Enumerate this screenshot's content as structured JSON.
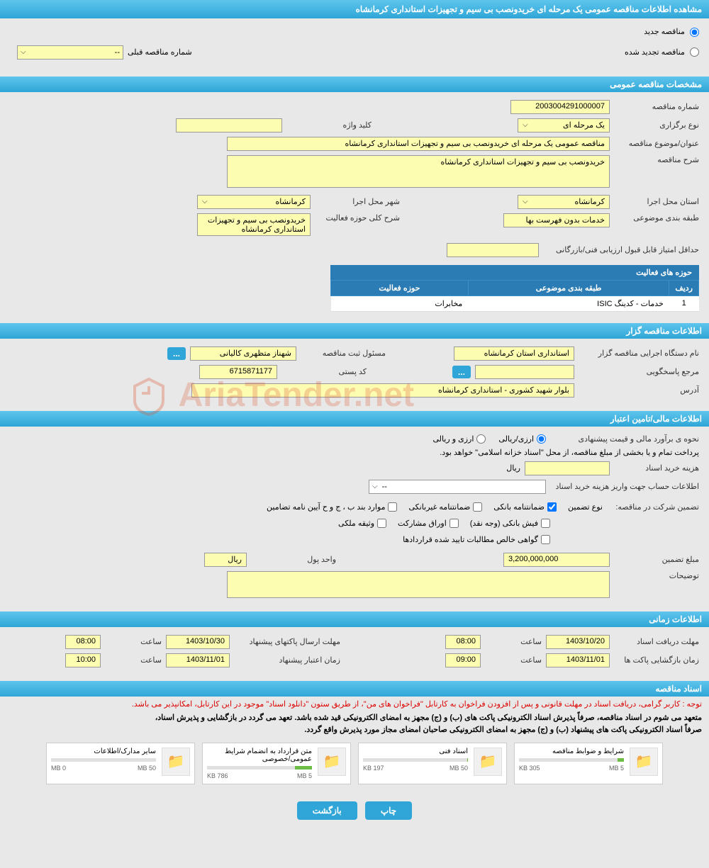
{
  "header": {
    "title": "مشاهده اطلاعات مناقصه عمومی یک مرحله ای خریدونصب بی سیم و تجهیزات استانداری کرمانشاه"
  },
  "radios": {
    "new": "مناقصه جدید",
    "renewed": "مناقصه تجدید شده"
  },
  "prev_tender": {
    "label": "شماره مناقصه قبلی",
    "value": "--"
  },
  "sections": {
    "general": "مشخصات مناقصه عمومی",
    "organizer": "اطلاعات مناقصه گزار",
    "financial": "اطلاعات مالی/تامین اعتبار",
    "timing": "اطلاعات زمانی",
    "documents": "اسناد مناقصه"
  },
  "general": {
    "number_label": "شماره مناقصه",
    "number": "2003004291000007",
    "type_label": "نوع برگزاری",
    "type": "یک مرحله ای",
    "keyword_label": "کلید واژه",
    "keyword": "",
    "title_label": "عنوان/موضوع مناقصه",
    "title": "مناقصه عمومی یک مرحله ای خریدونصب بی سیم و تجهیزات استانداری کرمانشاه",
    "desc_label": "شرح مناقصه",
    "desc": "خریدونصب بی سیم و تجهیزات استانداری کرمانشاه",
    "province_label": "استان محل اجرا",
    "province": "کرمانشاه",
    "city_label": "شهر محل اجرا",
    "city": "کرمانشاه",
    "classification_label": "طبقه بندی موضوعی",
    "classification": "خدمات بدون فهرست بها",
    "scope_label": "شرح کلی حوزه فعالیت",
    "scope": "خریدونصب بی سیم و تجهیزات استانداری کرمانشاه",
    "min_score_label": "حداقل امتیاز قابل قبول ارزیابی فنی/بازرگانی",
    "min_score": ""
  },
  "activity_table": {
    "title": "حوزه های فعالیت",
    "cols": {
      "idx": "ردیف",
      "cls": "طبقه بندی موضوعی",
      "scope": "حوزه فعالیت"
    },
    "rows": [
      {
        "idx": "1",
        "cls": "خدمات - کدینگ ISIC",
        "scope": "مخابرات"
      }
    ]
  },
  "organizer": {
    "name_label": "نام دستگاه اجرایی مناقصه گزار",
    "name": "استانداری استان کرمانشاه",
    "responsible_label": "مسئول ثبت مناقصه",
    "responsible": "شهناز متظهری کالیانی",
    "contact_label": "مرجع پاسخگویی",
    "postal_label": "کد پستی",
    "postal": "6715871177",
    "address_label": "آدرس",
    "address": "بلوار شهید کشوری - استانداری کرمانشاه"
  },
  "financial": {
    "estimate_label": "نحوه ی برآورد مالی و قیمت پیشنهادی",
    "opt_currency": "ارزی/ریالی",
    "opt_mixed": "ارزی و ریالی",
    "treasury_note": "پرداخت تمام و یا بخشی از مبلغ مناقصه، از محل \"اسناد خزانه اسلامی\" خواهد بود.",
    "doc_fee_label": "هزینه خرید اسناد",
    "unit_rial": "ریال",
    "deposit_info_label": "اطلاعات حساب جهت واریز هزینه خرید اسناد",
    "deposit_info_value": "--",
    "guarantee_label": "تضمین شرکت در مناقصه:",
    "guarantee_type_label": "نوع تضمین",
    "g1": "ضمانتنامه بانکی",
    "g2": "ضمانتنامه غیربانکی",
    "g3": "موارد بند ب ، ج و ح آیین نامه تضامین",
    "g4": "فیش بانکی (وجه نقد)",
    "g5": "اوراق مشارکت",
    "g6": "وثیقه ملکی",
    "g7": "گواهی خالص مطالبات تایید شده قراردادها",
    "amount_label": "مبلغ تضمین",
    "amount": "3,200,000,000",
    "unit_label": "واحد پول",
    "unit_value": "ریال",
    "notes_label": "توضیحات"
  },
  "timing": {
    "receive_deadline_label": "مهلت دریافت اسناد",
    "receive_deadline_date": "1403/10/20",
    "receive_deadline_time": "08:00",
    "time_label": "ساعت",
    "submit_deadline_label": "مهلت ارسال پاکتهای پیشنهاد",
    "submit_deadline_date": "1403/10/30",
    "submit_deadline_time": "08:00",
    "open_label": "زمان بازگشایی پاکت ها",
    "open_date": "1403/11/01",
    "open_time": "09:00",
    "validity_label": "زمان اعتبار پیشنهاد",
    "validity_date": "1403/11/01",
    "validity_time": "10:00"
  },
  "documents": {
    "note_red": "توجه : کاربر گرامی، دریافت اسناد در مهلت قانونی و پس از افزودن فراخوان به کارتابل \"فراخوان های من\"، از طریق ستون \"دانلود اسناد\" موجود در این کارتابل، امکانپذیر می باشد.",
    "note1": "متعهد می شوم در اسناد مناقصه، صرفاً پذیرش اسناد الکترونیکی پاکت های (ب) و (ج) مجهز به امضای الکترونیکی قید شده باشد. تعهد می گردد در بازگشایی و پذیرش اسناد،",
    "note2": "صرفاً اسناد الکترونیکی پاکت های پیشنهاد (ب) و (ج) مجهز به امضای الکترونیکی صاحبان امضای مجاز مورد پذیرش واقع گردد.",
    "files": [
      {
        "name": "شرایط و ضوابط مناقصه",
        "size": "305 KB",
        "max": "5 MB",
        "fill": 6
      },
      {
        "name": "اسناد فنی",
        "size": "197 KB",
        "max": "50 MB",
        "fill": 1
      },
      {
        "name": "متن قرارداد به انضمام شرایط عمومی/خصوصی",
        "size": "786 KB",
        "max": "5 MB",
        "fill": 16
      },
      {
        "name": "سایر مدارک/اطلاعات",
        "size": "0 MB",
        "max": "50 MB",
        "fill": 0
      }
    ]
  },
  "buttons": {
    "print": "چاپ",
    "back": "بازگشت",
    "more": "..."
  },
  "watermark": "AriaTender.net"
}
